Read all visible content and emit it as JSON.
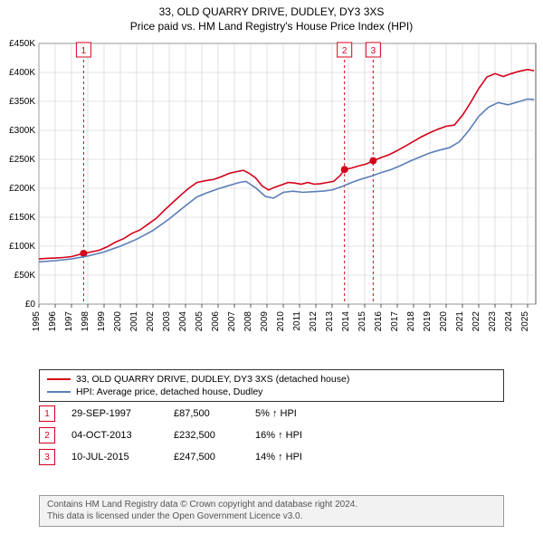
{
  "title_line1": "33, OLD QUARRY DRIVE, DUDLEY, DY3 3XS",
  "title_line2": "Price paid vs. HM Land Registry's House Price Index (HPI)",
  "chart": {
    "type": "line",
    "x_start": 1995,
    "x_end": 2025.5,
    "ylim": [
      0,
      450000
    ],
    "ytick_step": 50000,
    "ytick_labels": [
      "£0",
      "£50K",
      "£100K",
      "£150K",
      "£200K",
      "£250K",
      "£300K",
      "£350K",
      "£400K",
      "£450K"
    ],
    "x_ticks": [
      1995,
      1996,
      1997,
      1998,
      1999,
      2000,
      2001,
      2002,
      2003,
      2004,
      2005,
      2006,
      2007,
      2008,
      2009,
      2010,
      2011,
      2012,
      2013,
      2014,
      2015,
      2016,
      2017,
      2018,
      2019,
      2020,
      2021,
      2022,
      2023,
      2024,
      2025
    ],
    "background_color": "#ffffff",
    "grid_color": "#cccccc",
    "axis_color": "#333333",
    "series": {
      "property": {
        "color": "#d4001a",
        "width": 1.6,
        "points": [
          [
            1995,
            78000
          ],
          [
            1995.5,
            79000
          ],
          [
            1996,
            79500
          ],
          [
            1996.5,
            80500
          ],
          [
            1997,
            82000
          ],
          [
            1997.744,
            87500
          ],
          [
            1998.2,
            90000
          ],
          [
            1998.7,
            93000
          ],
          [
            1999.2,
            99000
          ],
          [
            1999.7,
            107000
          ],
          [
            2000.2,
            113000
          ],
          [
            2000.7,
            122000
          ],
          [
            2001.2,
            128000
          ],
          [
            2001.7,
            138000
          ],
          [
            2002.2,
            148000
          ],
          [
            2002.7,
            162000
          ],
          [
            2003.2,
            175000
          ],
          [
            2003.7,
            188000
          ],
          [
            2004.2,
            200000
          ],
          [
            2004.7,
            210000
          ],
          [
            2005.2,
            213000
          ],
          [
            2005.7,
            215000
          ],
          [
            2006.2,
            220000
          ],
          [
            2006.7,
            226000
          ],
          [
            2007.2,
            229000
          ],
          [
            2007.55,
            231000
          ],
          [
            2007.9,
            226000
          ],
          [
            2008.3,
            218000
          ],
          [
            2008.7,
            204000
          ],
          [
            2009.1,
            197000
          ],
          [
            2009.5,
            202000
          ],
          [
            2009.9,
            206000
          ],
          [
            2010.3,
            210000
          ],
          [
            2010.7,
            209000
          ],
          [
            2011.1,
            207000
          ],
          [
            2011.5,
            210000
          ],
          [
            2011.9,
            207000
          ],
          [
            2012.3,
            208000
          ],
          [
            2012.7,
            210000
          ],
          [
            2013.1,
            212000
          ],
          [
            2013.5,
            222000
          ],
          [
            2013.76,
            232500
          ],
          [
            2014.2,
            235000
          ],
          [
            2014.7,
            239000
          ],
          [
            2015.1,
            242000
          ],
          [
            2015.52,
            247500
          ],
          [
            2016,
            253000
          ],
          [
            2016.5,
            258000
          ],
          [
            2017,
            265000
          ],
          [
            2017.5,
            273000
          ],
          [
            2018,
            281000
          ],
          [
            2018.5,
            289000
          ],
          [
            2019,
            296000
          ],
          [
            2019.5,
            302000
          ],
          [
            2020,
            307000
          ],
          [
            2020.5,
            309000
          ],
          [
            2021,
            326000
          ],
          [
            2021.5,
            348000
          ],
          [
            2022,
            372000
          ],
          [
            2022.5,
            392000
          ],
          [
            2023,
            398000
          ],
          [
            2023.5,
            393000
          ],
          [
            2024,
            398000
          ],
          [
            2024.5,
            402000
          ],
          [
            2025,
            405000
          ],
          [
            2025.4,
            403000
          ]
        ]
      },
      "hpi": {
        "color": "#5b7eb8",
        "width": 1.6,
        "points": [
          [
            1995,
            73000
          ],
          [
            1996,
            75000
          ],
          [
            1997,
            78000
          ],
          [
            1998,
            83000
          ],
          [
            1999,
            90000
          ],
          [
            2000,
            100000
          ],
          [
            2001,
            112000
          ],
          [
            2002,
            127000
          ],
          [
            2003,
            147000
          ],
          [
            2004,
            170000
          ],
          [
            2004.7,
            185000
          ],
          [
            2005.3,
            192000
          ],
          [
            2006,
            199000
          ],
          [
            2006.7,
            205000
          ],
          [
            2007.3,
            210000
          ],
          [
            2007.7,
            212000
          ],
          [
            2008.3,
            201000
          ],
          [
            2008.9,
            186000
          ],
          [
            2009.4,
            183000
          ],
          [
            2010,
            193000
          ],
          [
            2010.6,
            195000
          ],
          [
            2011.2,
            193000
          ],
          [
            2011.8,
            194000
          ],
          [
            2012.4,
            195000
          ],
          [
            2013,
            197000
          ],
          [
            2013.6,
            203000
          ],
          [
            2014.2,
            210000
          ],
          [
            2014.8,
            216000
          ],
          [
            2015.4,
            221000
          ],
          [
            2016,
            227000
          ],
          [
            2016.6,
            232000
          ],
          [
            2017.2,
            239000
          ],
          [
            2017.8,
            247000
          ],
          [
            2018.4,
            254000
          ],
          [
            2019,
            261000
          ],
          [
            2019.6,
            266000
          ],
          [
            2020.2,
            270000
          ],
          [
            2020.8,
            280000
          ],
          [
            2021.4,
            300000
          ],
          [
            2022,
            324000
          ],
          [
            2022.6,
            340000
          ],
          [
            2023.2,
            348000
          ],
          [
            2023.8,
            344000
          ],
          [
            2024.4,
            349000
          ],
          [
            2025,
            354000
          ],
          [
            2025.4,
            353000
          ]
        ]
      }
    },
    "event_lines": {
      "color": "#d4001a",
      "dash": "3,3"
    },
    "event_marker": {
      "color": "#d4001a",
      "radius": 4
    }
  },
  "legend": {
    "series1": {
      "label": "33, OLD QUARRY DRIVE, DUDLEY, DY3 3XS (detached house)",
      "color": "#d4001a"
    },
    "series2": {
      "label": "HPI: Average price, detached house, Dudley",
      "color": "#5b7eb8"
    }
  },
  "events": [
    {
      "n": "1",
      "date": "29-SEP-1997",
      "x": 1997.744,
      "price_val": 87500,
      "price": "£87,500",
      "delta": "5% ↑ HPI"
    },
    {
      "n": "2",
      "date": "04-OCT-2013",
      "x": 2013.76,
      "price_val": 232500,
      "price": "£232,500",
      "delta": "16% ↑ HPI"
    },
    {
      "n": "3",
      "date": "10-JUL-2015",
      "x": 2015.52,
      "price_val": 247500,
      "price": "£247,500",
      "delta": "14% ↑ HPI"
    }
  ],
  "footer": {
    "line1": "Contains HM Land Registry data © Crown copyright and database right 2024.",
    "line2": "This data is licensed under the Open Government Licence v3.0."
  }
}
